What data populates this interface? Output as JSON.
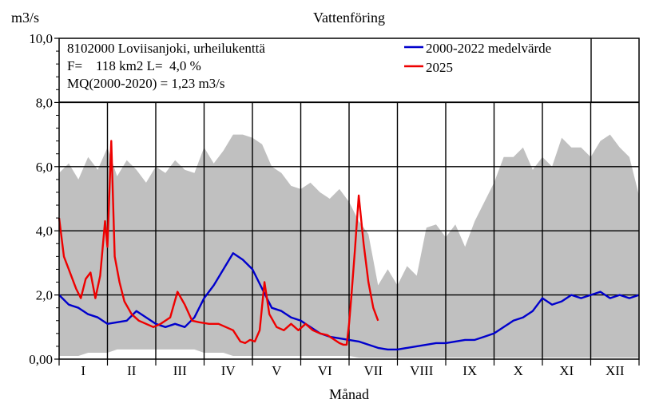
{
  "chart_data": {
    "type": "line",
    "title": "Vattenföring",
    "ylabel": "m3/s",
    "xlabel": "Månad",
    "ylim": [
      0,
      10
    ],
    "yticks": [
      "0,00",
      "2,0",
      "4,0",
      "6,0",
      "8,0",
      "10,0"
    ],
    "categories": [
      "I",
      "II",
      "III",
      "IV",
      "V",
      "VI",
      "VII",
      "VIII",
      "IX",
      "X",
      "XI",
      "XII"
    ],
    "info": [
      "8102000 Loviisanjoki, urheilukenttä",
      "F=    118 km2 L=  4,0 %",
      "MQ(2000-2020) = 1,23 m3/s"
    ],
    "legend": [
      {
        "label": "2000-2022 medelvärde",
        "color": "#0000cc"
      },
      {
        "label": "2025",
        "color": "#ee0000"
      }
    ],
    "legend_position": "top-right",
    "grid": true,
    "range_band": {
      "color": "#c0c0c0",
      "x": [
        0,
        0.2,
        0.4,
        0.6,
        0.8,
        1,
        1.2,
        1.4,
        1.6,
        1.8,
        2,
        2.2,
        2.4,
        2.6,
        2.8,
        3,
        3.2,
        3.4,
        3.6,
        3.8,
        4,
        4.2,
        4.4,
        4.6,
        4.8,
        5,
        5.2,
        5.4,
        5.6,
        5.8,
        6,
        6.2,
        6.4,
        6.6,
        6.8,
        7,
        7.2,
        7.4,
        7.6,
        7.8,
        8,
        8.2,
        8.4,
        8.6,
        8.8,
        9,
        9.2,
        9.4,
        9.6,
        9.8,
        10,
        10.2,
        10.4,
        10.6,
        10.8,
        11,
        11.2,
        11.4,
        11.6,
        11.8,
        12
      ],
      "max": [
        5.8,
        6.1,
        5.6,
        6.3,
        5.9,
        6.6,
        5.7,
        6.2,
        5.9,
        5.5,
        6.0,
        5.8,
        6.2,
        5.9,
        5.8,
        6.6,
        6.1,
        6.5,
        7.0,
        7.0,
        6.9,
        6.7,
        6.0,
        5.8,
        5.4,
        5.3,
        5.5,
        5.2,
        5.0,
        5.3,
        4.9,
        4.3,
        3.9,
        2.3,
        2.8,
        2.3,
        2.9,
        2.6,
        4.1,
        4.2,
        3.8,
        4.2,
        3.5,
        4.3,
        4.9,
        5.5,
        6.3,
        6.3,
        6.6,
        5.9,
        6.3,
        6.0,
        6.9,
        6.6,
        6.6,
        6.3,
        6.8,
        7.0,
        6.6,
        6.3,
        5.1
      ],
      "min": [
        0.1,
        0.1,
        0.1,
        0.2,
        0.2,
        0.2,
        0.3,
        0.3,
        0.3,
        0.3,
        0.3,
        0.3,
        0.3,
        0.3,
        0.3,
        0.2,
        0.2,
        0.2,
        0.1,
        0.1,
        0.1,
        0.1,
        0.1,
        0.1,
        0.1,
        0.1,
        0.1,
        0.1,
        0.1,
        0.1,
        0.1,
        0.05,
        0.05,
        0.05,
        0.05,
        0.05,
        0.05,
        0.05,
        0.05,
        0.05,
        0.05,
        0.05,
        0.05,
        0.05,
        0.05,
        0.05,
        0.05,
        0.05,
        0.05,
        0.05,
        0.05,
        0.05,
        0.05,
        0.05,
        0.05,
        0.05,
        0.05,
        0.05,
        0.05,
        0.05,
        0.05
      ]
    },
    "series": [
      {
        "name": "2000-2022 medelvärde",
        "color": "#0000cc",
        "x": [
          0,
          0.2,
          0.4,
          0.6,
          0.8,
          1,
          1.2,
          1.4,
          1.6,
          1.8,
          2,
          2.2,
          2.4,
          2.6,
          2.8,
          3,
          3.2,
          3.4,
          3.6,
          3.8,
          4,
          4.2,
          4.4,
          4.6,
          4.8,
          5,
          5.2,
          5.4,
          5.6,
          5.8,
          6,
          6.2,
          6.4,
          6.6,
          6.8,
          7,
          7.2,
          7.4,
          7.6,
          7.8,
          8,
          8.2,
          8.4,
          8.6,
          8.8,
          9,
          9.2,
          9.4,
          9.6,
          9.8,
          10,
          10.2,
          10.4,
          10.6,
          10.8,
          11,
          11.2,
          11.4,
          11.6,
          11.8,
          12
        ],
        "y": [
          2.0,
          1.7,
          1.6,
          1.4,
          1.3,
          1.1,
          1.15,
          1.2,
          1.5,
          1.3,
          1.1,
          1.0,
          1.1,
          1.0,
          1.3,
          1.9,
          2.3,
          2.8,
          3.3,
          3.1,
          2.8,
          2.2,
          1.6,
          1.5,
          1.3,
          1.2,
          1.0,
          0.8,
          0.7,
          0.65,
          0.6,
          0.55,
          0.45,
          0.35,
          0.3,
          0.3,
          0.35,
          0.4,
          0.45,
          0.5,
          0.5,
          0.55,
          0.6,
          0.6,
          0.7,
          0.8,
          1.0,
          1.2,
          1.3,
          1.5,
          1.9,
          1.7,
          1.8,
          2.0,
          1.9,
          2.0,
          2.1,
          1.9,
          2.0,
          1.9,
          2.0
        ]
      },
      {
        "name": "2025",
        "color": "#ee0000",
        "x": [
          0,
          0.1,
          0.2,
          0.35,
          0.45,
          0.55,
          0.65,
          0.75,
          0.85,
          0.95,
          1.0,
          1.08,
          1.15,
          1.25,
          1.35,
          1.5,
          1.65,
          1.8,
          1.95,
          2.1,
          2.3,
          2.45,
          2.6,
          2.75,
          2.9,
          3.1,
          3.3,
          3.45,
          3.6,
          3.75,
          3.85,
          3.95,
          4.05,
          4.15,
          4.25,
          4.35,
          4.5,
          4.65,
          4.8,
          4.95,
          5.1,
          5.25,
          5.4,
          5.55,
          5.7,
          5.8,
          5.88,
          5.95,
          6.0,
          6.05,
          6.12,
          6.2,
          6.3,
          6.4,
          6.5,
          6.6
        ],
        "y": [
          4.4,
          3.2,
          2.8,
          2.2,
          1.9,
          2.5,
          2.7,
          1.9,
          2.6,
          4.3,
          3.5,
          6.8,
          3.2,
          2.4,
          1.8,
          1.4,
          1.2,
          1.1,
          1.0,
          1.1,
          1.3,
          2.1,
          1.7,
          1.2,
          1.15,
          1.1,
          1.1,
          1.0,
          0.9,
          0.55,
          0.5,
          0.6,
          0.55,
          0.9,
          2.4,
          1.4,
          1.0,
          0.9,
          1.1,
          0.9,
          1.1,
          0.9,
          0.8,
          0.75,
          0.6,
          0.5,
          0.45,
          0.45,
          1.1,
          2.0,
          3.4,
          5.1,
          3.6,
          2.4,
          1.6,
          1.2
        ]
      }
    ]
  }
}
